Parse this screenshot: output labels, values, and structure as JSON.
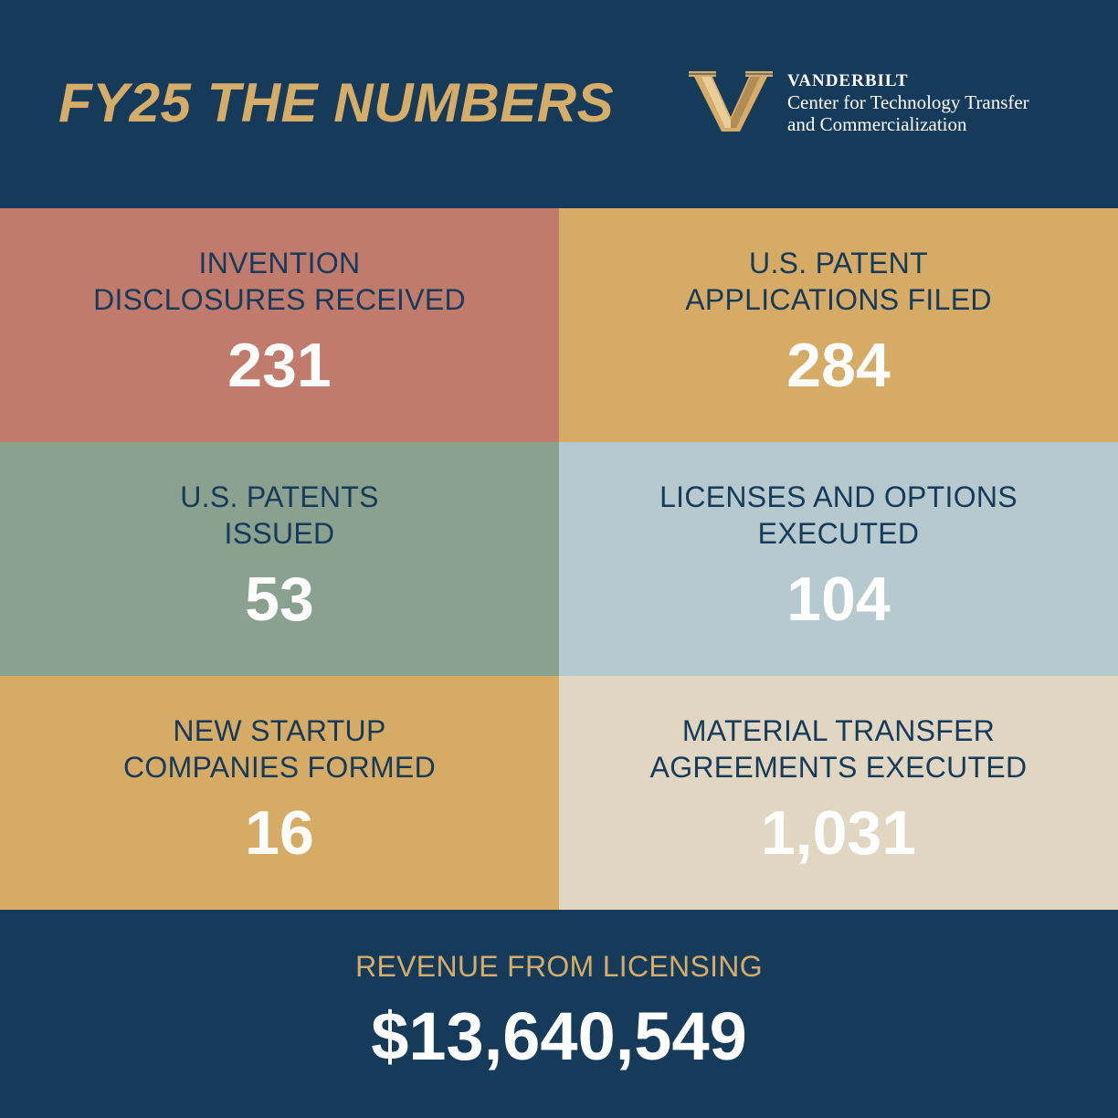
{
  "header": {
    "title": "FY25 THE NUMBERS",
    "logo": {
      "name": "VANDERBILT",
      "line1": "Center for Technology Transfer",
      "line2": "and Commercialization",
      "icon": "vanderbilt-v-icon",
      "color": "#d5ad69"
    }
  },
  "stats": [
    {
      "label": "INVENTION\nDISCLOSURES RECEIVED",
      "value": "231",
      "color": "#c17b6c"
    },
    {
      "label": "U.S. PATENT\nAPPLICATIONS FILED",
      "value": "284",
      "color": "#d5ab66"
    },
    {
      "label": "U.S. PATENTS\nISSUED",
      "value": "53",
      "color": "#89a18e"
    },
    {
      "label": "LICENSES AND OPTIONS\nEXECUTED",
      "value": "104",
      "color": "#b5c9cf"
    },
    {
      "label": "NEW STARTUP\nCOMPANIES FORMED",
      "value": "16",
      "color": "#d5ab66"
    },
    {
      "label": "MATERIAL TRANSFER\nAGREEMENTS EXECUTED",
      "value": "1,031",
      "color": "#e1d6c2"
    }
  ],
  "revenue": {
    "label": "REVENUE FROM LICENSING",
    "value": "$13,640,549"
  },
  "colors": {
    "background": "#163a5a",
    "accent": "#d5ad69",
    "text_light": "#ffffff"
  }
}
